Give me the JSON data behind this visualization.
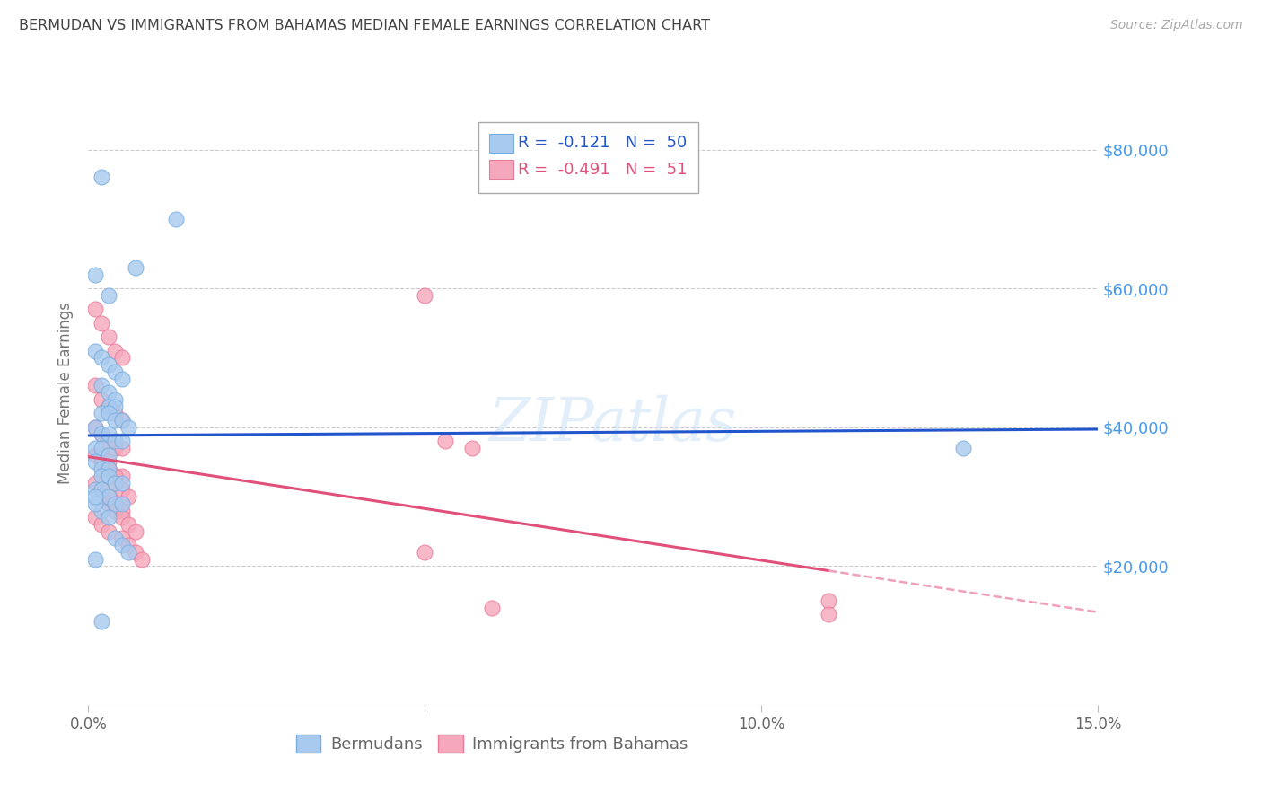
{
  "title": "BERMUDAN VS IMMIGRANTS FROM BAHAMAS MEDIAN FEMALE EARNINGS CORRELATION CHART",
  "source": "Source: ZipAtlas.com",
  "ylabel": "Median Female Earnings",
  "xlim": [
    0.0,
    0.15
  ],
  "ylim": [
    0,
    90000
  ],
  "yticks": [
    0,
    20000,
    40000,
    60000,
    80000
  ],
  "ytick_labels": [
    "",
    "$20,000",
    "$40,000",
    "$60,000",
    "$80,000"
  ],
  "xticks": [
    0.0,
    0.05,
    0.1,
    0.15
  ],
  "xtick_labels": [
    "0.0%",
    "",
    "10.0%",
    "15.0%"
  ],
  "blue_R": "-0.121",
  "blue_N": "50",
  "pink_R": "-0.491",
  "pink_N": "51",
  "blue_color": "#a8caee",
  "pink_color": "#f5a8bb",
  "blue_edge": "#7aaedf",
  "pink_edge": "#e87a9a",
  "blue_line_color": "#2255cc",
  "pink_line_color": "#e0507a",
  "pink_dash_color": "#f0a0bb",
  "bg_color": "#ffffff",
  "grid_color": "#cccccc",
  "title_color": "#444444",
  "right_axis_color": "#4499ee",
  "source_color": "#aaaaaa",
  "blue_x": [
    0.002,
    0.013,
    0.007,
    0.001,
    0.003,
    0.001,
    0.002,
    0.003,
    0.004,
    0.005,
    0.002,
    0.003,
    0.004,
    0.003,
    0.004,
    0.002,
    0.003,
    0.004,
    0.005,
    0.006,
    0.001,
    0.002,
    0.003,
    0.004,
    0.005,
    0.001,
    0.002,
    0.003,
    0.001,
    0.002,
    0.003,
    0.002,
    0.003,
    0.004,
    0.005,
    0.001,
    0.002,
    0.003,
    0.004,
    0.005,
    0.002,
    0.003,
    0.004,
    0.005,
    0.006,
    0.001,
    0.002,
    0.001,
    0.13,
    0.001
  ],
  "blue_y": [
    76000,
    70000,
    63000,
    62000,
    59000,
    51000,
    50000,
    49000,
    48000,
    47000,
    46000,
    45000,
    44000,
    43000,
    43000,
    42000,
    42000,
    41000,
    41000,
    40000,
    40000,
    39000,
    39000,
    38000,
    38000,
    37000,
    37000,
    36000,
    35000,
    34000,
    34000,
    33000,
    33000,
    32000,
    32000,
    31000,
    31000,
    30000,
    29000,
    29000,
    28000,
    27000,
    24000,
    23000,
    22000,
    21000,
    12000,
    29000,
    37000,
    30000
  ],
  "pink_x": [
    0.001,
    0.002,
    0.003,
    0.004,
    0.005,
    0.001,
    0.002,
    0.003,
    0.004,
    0.005,
    0.001,
    0.002,
    0.003,
    0.004,
    0.005,
    0.001,
    0.002,
    0.003,
    0.004,
    0.005,
    0.001,
    0.002,
    0.003,
    0.004,
    0.005,
    0.001,
    0.002,
    0.003,
    0.002,
    0.003,
    0.003,
    0.004,
    0.004,
    0.005,
    0.006,
    0.003,
    0.004,
    0.005,
    0.006,
    0.007,
    0.005,
    0.006,
    0.007,
    0.008,
    0.05,
    0.053,
    0.057,
    0.05,
    0.11,
    0.11,
    0.06
  ],
  "pink_y": [
    57000,
    55000,
    53000,
    51000,
    50000,
    46000,
    44000,
    43000,
    42000,
    41000,
    40000,
    39000,
    38000,
    37000,
    37000,
    36000,
    35000,
    34000,
    33000,
    33000,
    32000,
    31000,
    30000,
    29000,
    28000,
    27000,
    26000,
    25000,
    36000,
    35000,
    34000,
    33000,
    32000,
    31000,
    30000,
    29000,
    28000,
    27000,
    26000,
    25000,
    24000,
    23000,
    22000,
    21000,
    59000,
    38000,
    37000,
    22000,
    15000,
    13000,
    14000
  ]
}
